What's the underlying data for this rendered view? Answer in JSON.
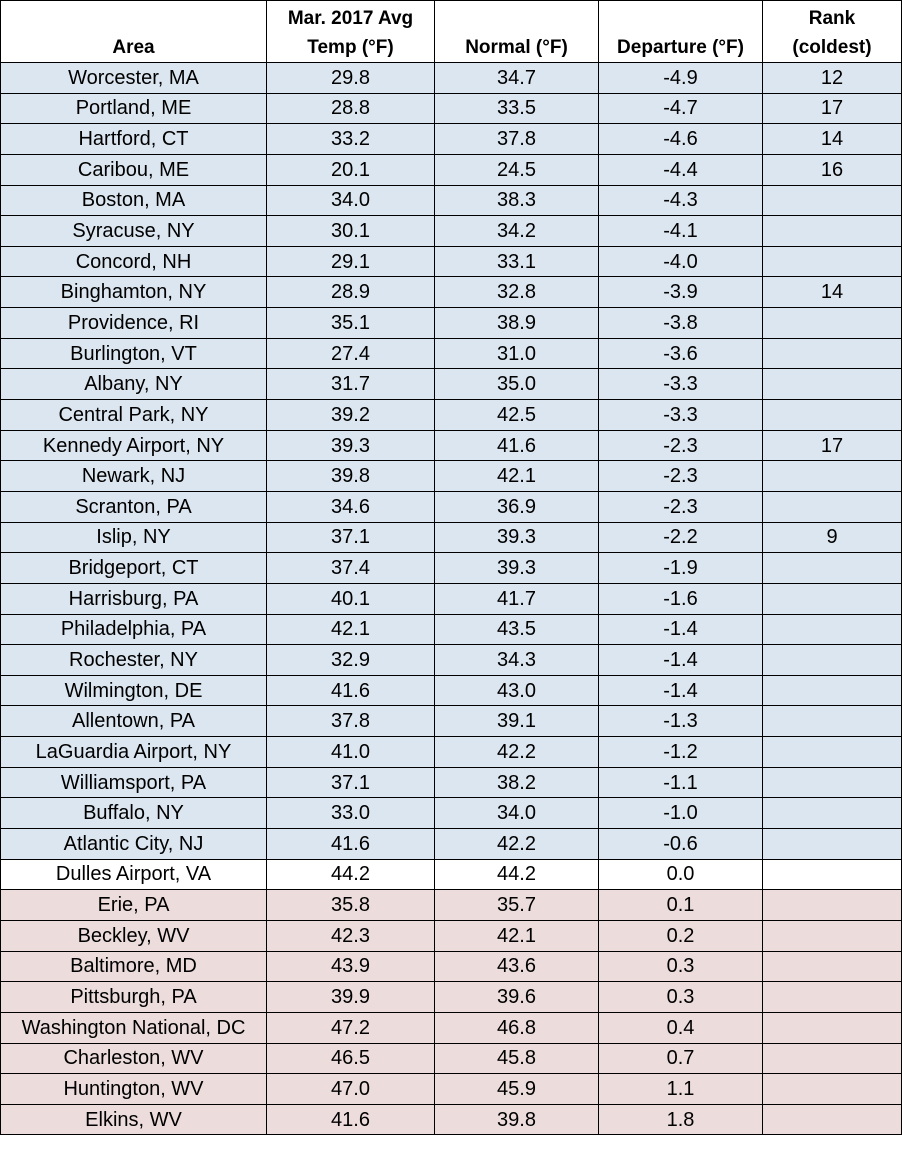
{
  "table": {
    "headers": {
      "area": "Area",
      "avg_line1": "Mar. 2017 Avg",
      "avg_line2": "Temp (°F)",
      "normal": "Normal  (°F)",
      "departure": "Departure (°F)",
      "rank_line1": "Rank",
      "rank_line2": "(coldest)"
    },
    "row_colors": {
      "cold": "#dce6f0",
      "neutral": "#ffffff",
      "warm": "#ecdcdc"
    },
    "rows": [
      {
        "area": "Worcester, MA",
        "avg": "29.8",
        "normal": "34.7",
        "departure": "-4.9",
        "rank": "12",
        "tone": "cold"
      },
      {
        "area": "Portland, ME",
        "avg": "28.8",
        "normal": "33.5",
        "departure": "-4.7",
        "rank": "17",
        "tone": "cold"
      },
      {
        "area": "Hartford, CT",
        "avg": "33.2",
        "normal": "37.8",
        "departure": "-4.6",
        "rank": "14",
        "tone": "cold"
      },
      {
        "area": "Caribou, ME",
        "avg": "20.1",
        "normal": "24.5",
        "departure": "-4.4",
        "rank": "16",
        "tone": "cold"
      },
      {
        "area": "Boston, MA",
        "avg": "34.0",
        "normal": "38.3",
        "departure": "-4.3",
        "rank": "",
        "tone": "cold"
      },
      {
        "area": "Syracuse, NY",
        "avg": "30.1",
        "normal": "34.2",
        "departure": "-4.1",
        "rank": "",
        "tone": "cold"
      },
      {
        "area": "Concord, NH",
        "avg": "29.1",
        "normal": "33.1",
        "departure": "-4.0",
        "rank": "",
        "tone": "cold"
      },
      {
        "area": "Binghamton, NY",
        "avg": "28.9",
        "normal": "32.8",
        "departure": "-3.9",
        "rank": "14",
        "tone": "cold"
      },
      {
        "area": "Providence, RI",
        "avg": "35.1",
        "normal": "38.9",
        "departure": "-3.8",
        "rank": "",
        "tone": "cold"
      },
      {
        "area": "Burlington, VT",
        "avg": "27.4",
        "normal": "31.0",
        "departure": "-3.6",
        "rank": "",
        "tone": "cold"
      },
      {
        "area": "Albany, NY",
        "avg": "31.7",
        "normal": "35.0",
        "departure": "-3.3",
        "rank": "",
        "tone": "cold"
      },
      {
        "area": "Central Park, NY",
        "avg": "39.2",
        "normal": "42.5",
        "departure": "-3.3",
        "rank": "",
        "tone": "cold"
      },
      {
        "area": "Kennedy Airport, NY",
        "avg": "39.3",
        "normal": "41.6",
        "departure": "-2.3",
        "rank": "17",
        "tone": "cold"
      },
      {
        "area": "Newark, NJ",
        "avg": "39.8",
        "normal": "42.1",
        "departure": "-2.3",
        "rank": "",
        "tone": "cold"
      },
      {
        "area": "Scranton, PA",
        "avg": "34.6",
        "normal": "36.9",
        "departure": "-2.3",
        "rank": "",
        "tone": "cold"
      },
      {
        "area": "Islip, NY",
        "avg": "37.1",
        "normal": "39.3",
        "departure": "-2.2",
        "rank": "9",
        "tone": "cold"
      },
      {
        "area": "Bridgeport, CT",
        "avg": "37.4",
        "normal": "39.3",
        "departure": "-1.9",
        "rank": "",
        "tone": "cold"
      },
      {
        "area": "Harrisburg, PA",
        "avg": "40.1",
        "normal": "41.7",
        "departure": "-1.6",
        "rank": "",
        "tone": "cold"
      },
      {
        "area": "Philadelphia, PA",
        "avg": "42.1",
        "normal": "43.5",
        "departure": "-1.4",
        "rank": "",
        "tone": "cold"
      },
      {
        "area": "Rochester, NY",
        "avg": "32.9",
        "normal": "34.3",
        "departure": "-1.4",
        "rank": "",
        "tone": "cold"
      },
      {
        "area": "Wilmington, DE",
        "avg": "41.6",
        "normal": "43.0",
        "departure": "-1.4",
        "rank": "",
        "tone": "cold"
      },
      {
        "area": "Allentown, PA",
        "avg": "37.8",
        "normal": "39.1",
        "departure": "-1.3",
        "rank": "",
        "tone": "cold"
      },
      {
        "area": "LaGuardia Airport, NY",
        "avg": "41.0",
        "normal": "42.2",
        "departure": "-1.2",
        "rank": "",
        "tone": "cold"
      },
      {
        "area": "Williamsport, PA",
        "avg": "37.1",
        "normal": "38.2",
        "departure": "-1.1",
        "rank": "",
        "tone": "cold"
      },
      {
        "area": "Buffalo, NY",
        "avg": "33.0",
        "normal": "34.0",
        "departure": "-1.0",
        "rank": "",
        "tone": "cold"
      },
      {
        "area": "Atlantic City, NJ",
        "avg": "41.6",
        "normal": "42.2",
        "departure": "-0.6",
        "rank": "",
        "tone": "cold"
      },
      {
        "area": "Dulles Airport, VA",
        "avg": "44.2",
        "normal": "44.2",
        "departure": "0.0",
        "rank": "",
        "tone": "neutral"
      },
      {
        "area": "Erie, PA",
        "avg": "35.8",
        "normal": "35.7",
        "departure": "0.1",
        "rank": "",
        "tone": "warm"
      },
      {
        "area": "Beckley, WV",
        "avg": "42.3",
        "normal": "42.1",
        "departure": "0.2",
        "rank": "",
        "tone": "warm"
      },
      {
        "area": "Baltimore, MD",
        "avg": "43.9",
        "normal": "43.6",
        "departure": "0.3",
        "rank": "",
        "tone": "warm"
      },
      {
        "area": "Pittsburgh, PA",
        "avg": "39.9",
        "normal": "39.6",
        "departure": "0.3",
        "rank": "",
        "tone": "warm"
      },
      {
        "area": "Washington National, DC",
        "avg": "47.2",
        "normal": "46.8",
        "departure": "0.4",
        "rank": "",
        "tone": "warm"
      },
      {
        "area": "Charleston, WV",
        "avg": "46.5",
        "normal": "45.8",
        "departure": "0.7",
        "rank": "",
        "tone": "warm"
      },
      {
        "area": "Huntington, WV",
        "avg": "47.0",
        "normal": "45.9",
        "departure": "1.1",
        "rank": "",
        "tone": "warm"
      },
      {
        "area": "Elkins, WV",
        "avg": "41.6",
        "normal": "39.8",
        "departure": "1.8",
        "rank": "",
        "tone": "warm"
      }
    ]
  }
}
